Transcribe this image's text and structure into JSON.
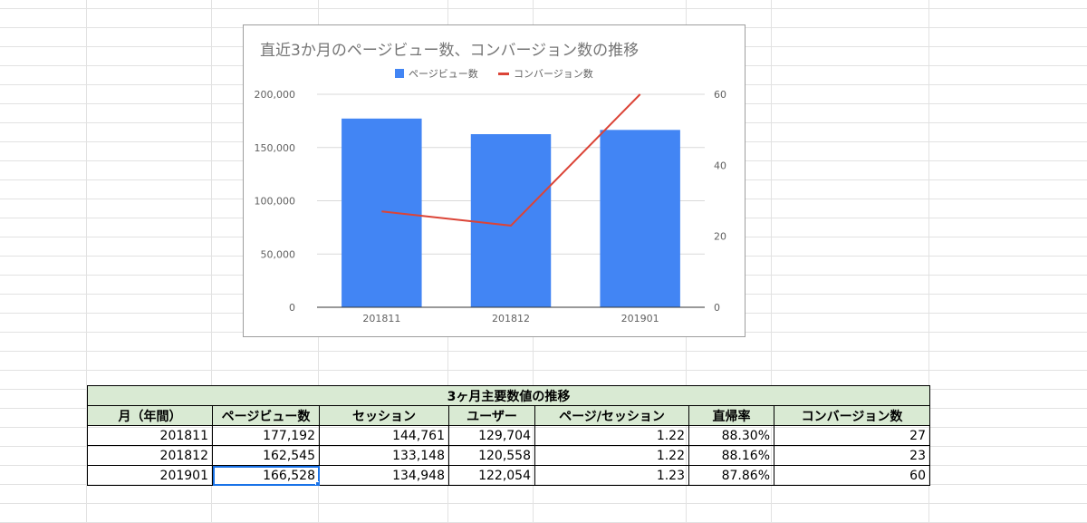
{
  "chart_data": {
    "type": "bar",
    "title": "直近3か月のページビュー数、コンバージョン数の推移",
    "categories": [
      "201811",
      "201812",
      "201901"
    ],
    "series": [
      {
        "name": "ページビュー数",
        "type": "bar",
        "axis": "left",
        "color": "#4285f4",
        "values": [
          177192,
          162545,
          166528
        ]
      },
      {
        "name": "コンバージョン数",
        "type": "line",
        "axis": "right",
        "color": "#db4437",
        "values": [
          27,
          23,
          60
        ]
      }
    ],
    "ylim_left": [
      0,
      200000
    ],
    "yticks_left": [
      "0",
      "50,000",
      "100,000",
      "150,000",
      "200,000"
    ],
    "ylim_right": [
      0,
      60
    ],
    "yticks_right": [
      "0",
      "20",
      "40",
      "60"
    ],
    "legend": "top",
    "grid": true
  },
  "table": {
    "title": "3ヶ月主要数値の推移",
    "headers": [
      "月（年間）",
      "ページビュー数",
      "セッション",
      "ユーザー",
      "ページ/セッション",
      "直帰率",
      "コンバージョン数"
    ],
    "rows": [
      [
        "201811",
        "177,192",
        "144,761",
        "129,704",
        "1.22",
        "88.30%",
        "27"
      ],
      [
        "201812",
        "162,545",
        "133,148",
        "120,558",
        "1.22",
        "88.16%",
        "23"
      ],
      [
        "201901",
        "166,528",
        "134,948",
        "122,054",
        "1.23",
        "87.86%",
        "60"
      ]
    ]
  }
}
